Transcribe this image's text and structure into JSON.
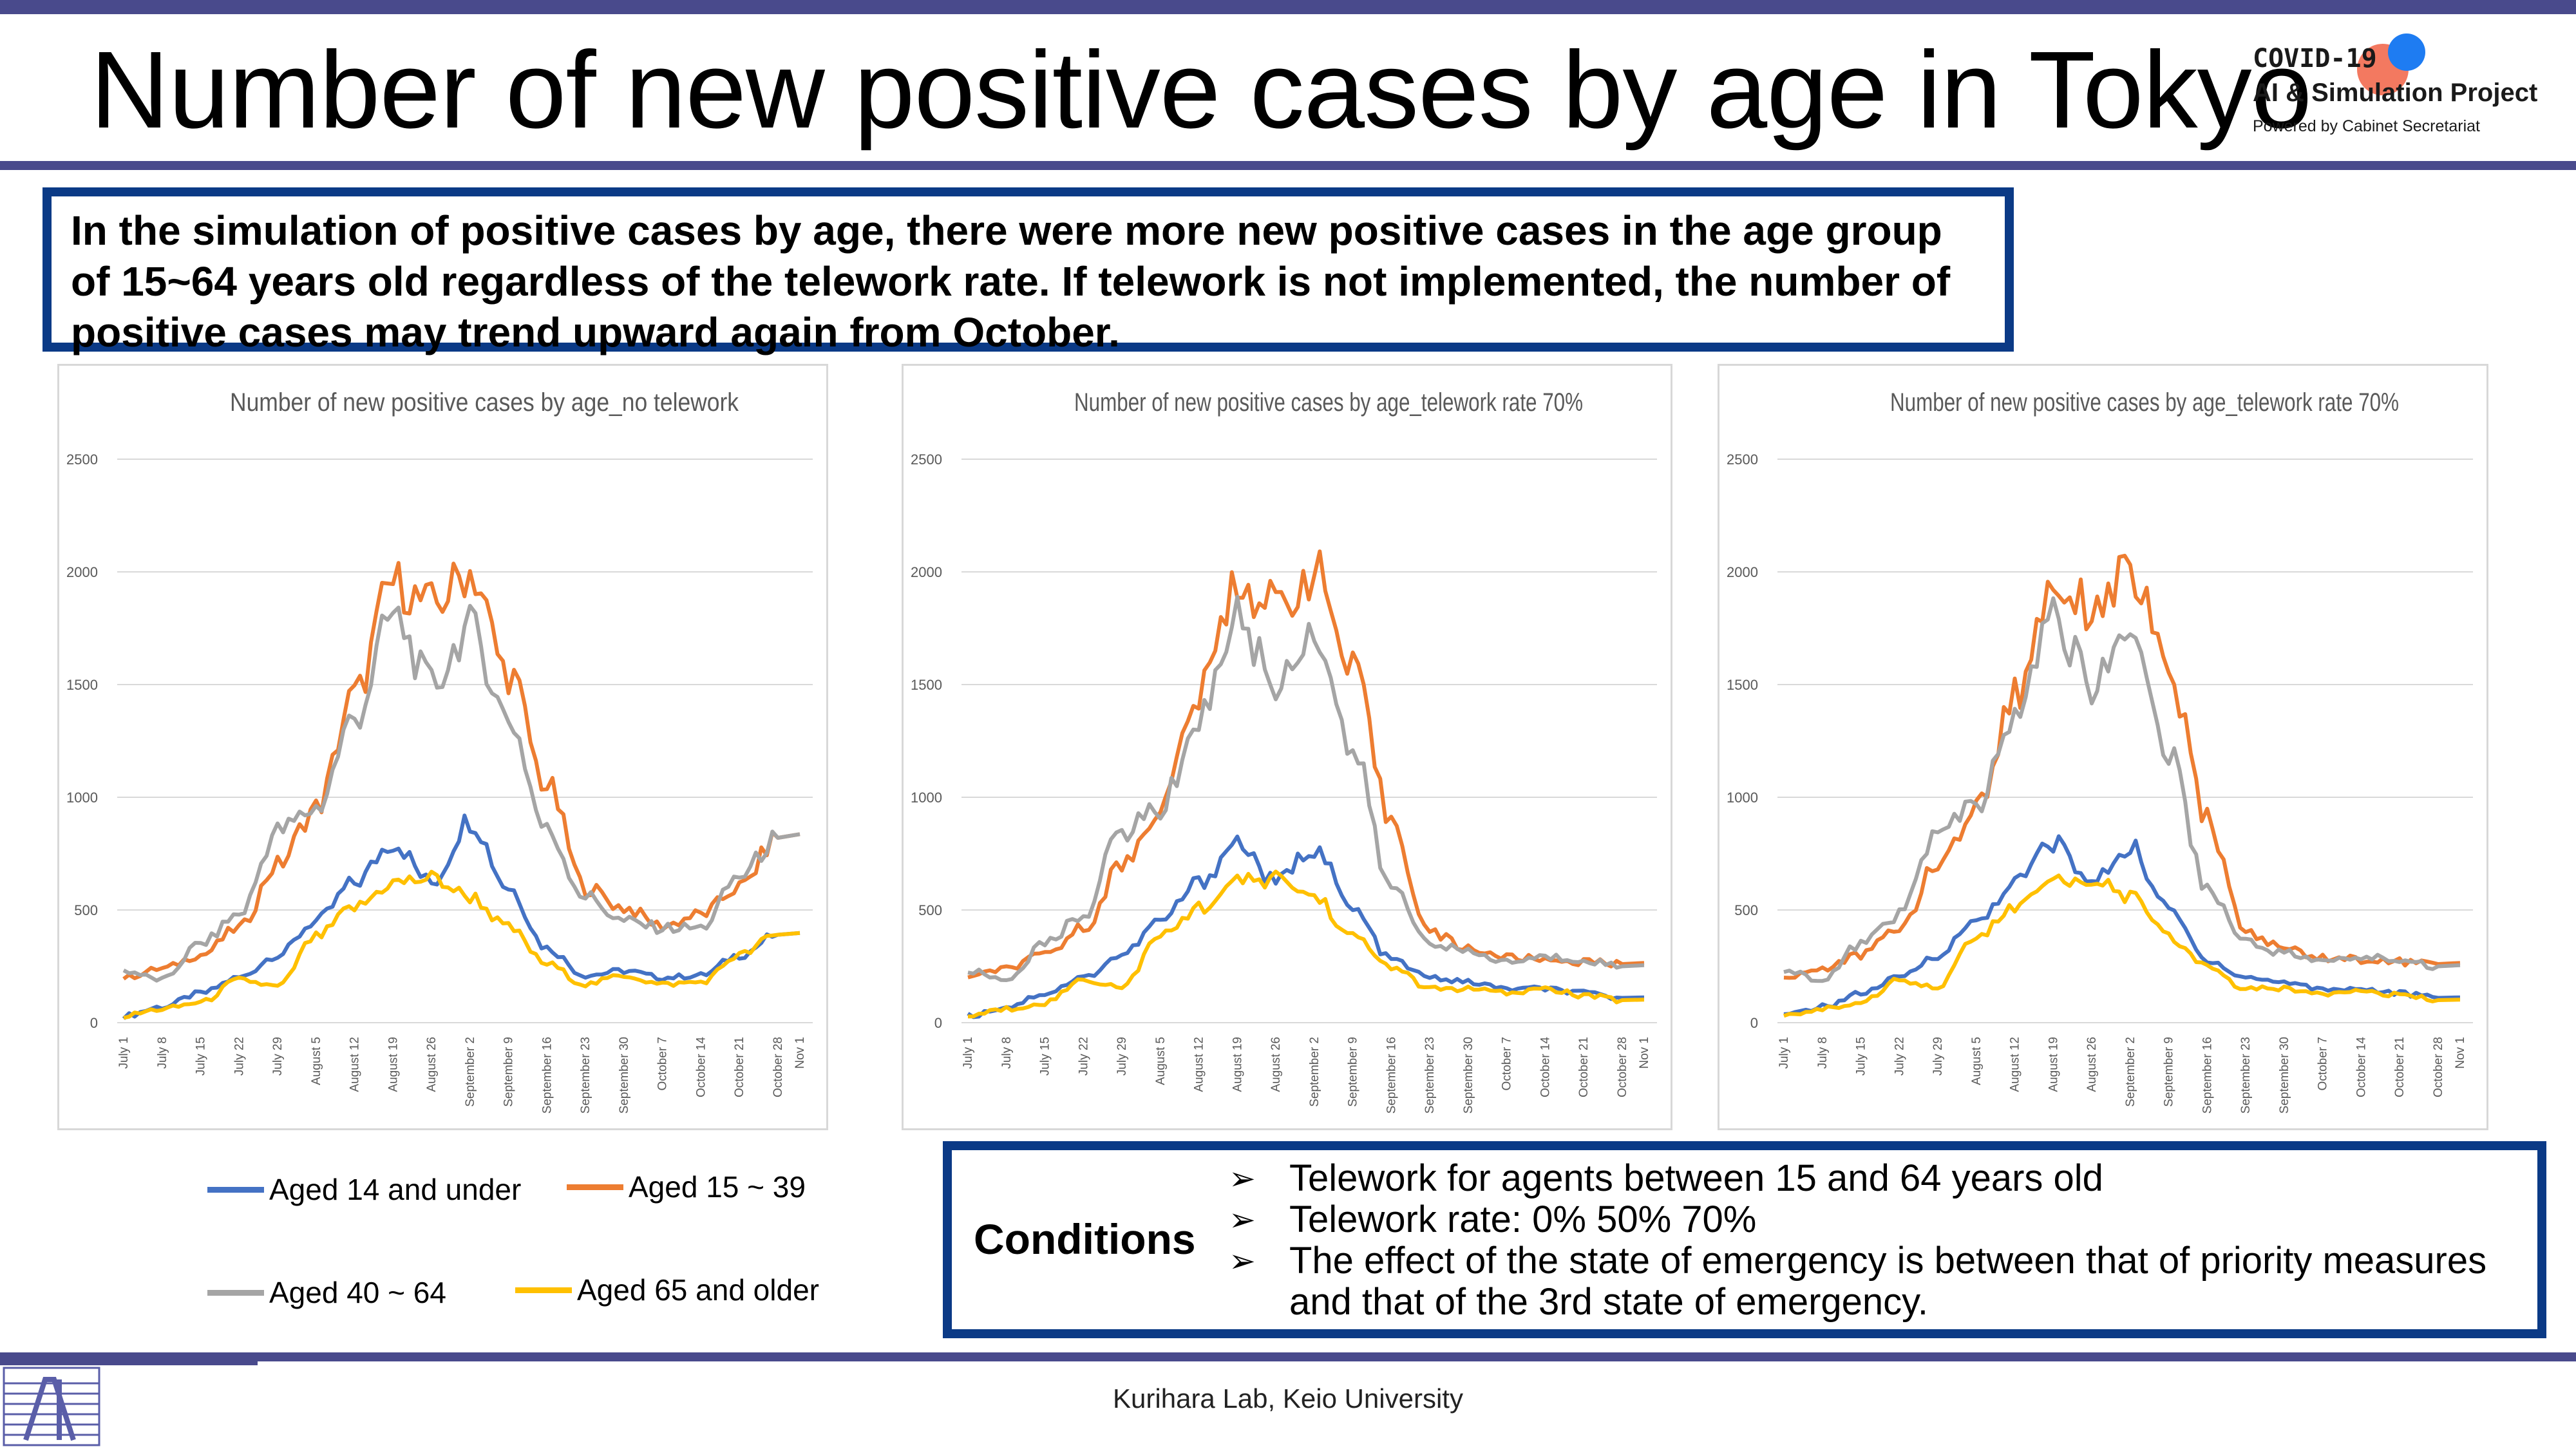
{
  "title": "Number of new positive cases by age in Tokyo",
  "logo": {
    "line1": "COVID-19",
    "line2": "AI & Simulation Project",
    "line3": "Powered by Cabinet Secretariat"
  },
  "summary": "In the simulation of positive cases by age, there were more new positive cases in the age group of 15~64 years old regardless of the telework rate. If telework is not implemented, the number of positive cases may trend upward again from October.",
  "legend": [
    {
      "label": "Aged 14 and under",
      "color": "#4472c4"
    },
    {
      "label": "Aged 15 ~ 39",
      "color": "#ed7d31"
    },
    {
      "label": "Aged 40 ~ 64",
      "color": "#a5a5a5"
    },
    {
      "label": "Aged 65 and older",
      "color": "#ffc000"
    }
  ],
  "conditions": {
    "label": "Conditions",
    "items": [
      "Telework for agents between 15 and 64 years old",
      "Telework rate: 0%  50%  70%",
      "The effect of the state of emergency is between that of priority measures and that of the 3rd state of emergency."
    ]
  },
  "footer": "Kurihara Lab, Keio University",
  "chart_data": [
    {
      "type": "line",
      "title": "Number of new positive cases by age_no telework",
      "ylim": [
        0,
        2500
      ],
      "yticks": [
        0,
        500,
        1000,
        1500,
        2000,
        2500
      ],
      "x": [
        "July 1",
        "July 8",
        "July 15",
        "July 22",
        "July 29",
        "August 5",
        "August 12",
        "August 19",
        "August 26",
        "September 2",
        "September 9",
        "September 16",
        "September 23",
        "September 30",
        "October 7",
        "October 14",
        "October 21",
        "October 28"
      ],
      "x_end_label": "Nov 1",
      "grid": true,
      "series": [
        {
          "name": "Aged 14 and under",
          "color": "#4472c4",
          "values": [
            30,
            70,
            130,
            200,
            300,
            450,
            620,
            800,
            620,
            900,
            600,
            330,
            210,
            230,
            200,
            210,
            300,
            390
          ]
        },
        {
          "name": "Aged 15 ~ 39",
          "color": "#ed7d31",
          "values": [
            200,
            240,
            300,
            420,
            700,
            950,
            1450,
            1950,
            1850,
            2000,
            1550,
            1050,
            600,
            510,
            430,
            480,
            600,
            820
          ]
        },
        {
          "name": "Aged 40 ~ 64",
          "color": "#a5a5a5",
          "values": [
            230,
            190,
            350,
            480,
            850,
            950,
            1350,
            1800,
            1500,
            1750,
            1350,
            850,
            560,
            450,
            420,
            420,
            650,
            820
          ]
        },
        {
          "name": "Aged 65 and older",
          "color": "#ffc000",
          "values": [
            30,
            60,
            90,
            190,
            160,
            380,
            510,
            620,
            640,
            560,
            420,
            260,
            170,
            210,
            170,
            180,
            300,
            390
          ]
        }
      ]
    },
    {
      "type": "line",
      "title": "Number of new positive cases by age_telework rate 70%",
      "ylim": [
        0,
        2500
      ],
      "yticks": [
        0,
        500,
        1000,
        1500,
        2000,
        2500
      ],
      "x": [
        "July 1",
        "July 8",
        "July 15",
        "July 22",
        "July 29",
        "August 5",
        "August 12",
        "August 19",
        "August 26",
        "September 2",
        "September 9",
        "September 16",
        "September 23",
        "September 30",
        "October 7",
        "October 14",
        "October 21",
        "October 28"
      ],
      "x_end_label": "Nov 1",
      "grid": true,
      "series": [
        {
          "name": "Aged 14 and under",
          "color": "#4472c4",
          "values": [
            30,
            70,
            130,
            200,
            300,
            450,
            620,
            800,
            620,
            780,
            500,
            280,
            200,
            180,
            150,
            150,
            130,
            110
          ]
        },
        {
          "name": "Aged 15 ~ 39",
          "color": "#ed7d31",
          "values": [
            200,
            240,
            300,
            420,
            700,
            950,
            1450,
            1950,
            1850,
            2000,
            1550,
            900,
            400,
            330,
            290,
            280,
            270,
            260
          ]
        },
        {
          "name": "Aged 40 ~ 64",
          "color": "#a5a5a5",
          "values": [
            230,
            190,
            350,
            480,
            850,
            950,
            1350,
            1800,
            1500,
            1750,
            1200,
            600,
            360,
            310,
            270,
            290,
            280,
            250
          ]
        },
        {
          "name": "Aged 65 and older",
          "color": "#ffc000",
          "values": [
            30,
            60,
            90,
            190,
            160,
            380,
            510,
            620,
            640,
            560,
            380,
            250,
            150,
            150,
            130,
            150,
            120,
            100
          ]
        }
      ]
    },
    {
      "type": "line",
      "title": "Number of new positive cases by age_telework rate 70%",
      "ylim": [
        0,
        2500
      ],
      "yticks": [
        0,
        500,
        1000,
        1500,
        2000,
        2500
      ],
      "x": [
        "July 1",
        "July 8",
        "July 15",
        "July 22",
        "July 29",
        "August 5",
        "August 12",
        "August 19",
        "August 26",
        "September 2",
        "September 9",
        "September 16",
        "September 23",
        "September 30",
        "October 7",
        "October 14",
        "October 21",
        "October 28"
      ],
      "x_end_label": "Nov 1",
      "grid": true,
      "series": [
        {
          "name": "Aged 14 and under",
          "color": "#4472c4",
          "values": [
            30,
            70,
            130,
            200,
            300,
            450,
            620,
            800,
            620,
            780,
            500,
            280,
            200,
            180,
            150,
            150,
            130,
            110
          ]
        },
        {
          "name": "Aged 15 ~ 39",
          "color": "#ed7d31",
          "values": [
            200,
            240,
            300,
            420,
            700,
            950,
            1450,
            1950,
            1850,
            2000,
            1550,
            900,
            400,
            330,
            290,
            280,
            270,
            260
          ]
        },
        {
          "name": "Aged 40 ~ 64",
          "color": "#a5a5a5",
          "values": [
            230,
            190,
            350,
            480,
            850,
            950,
            1350,
            1800,
            1500,
            1750,
            1200,
            600,
            360,
            310,
            270,
            290,
            280,
            250
          ]
        },
        {
          "name": "Aged 65 and older",
          "color": "#ffc000",
          "values": [
            30,
            60,
            90,
            190,
            160,
            380,
            510,
            620,
            640,
            560,
            380,
            250,
            150,
            150,
            130,
            150,
            120,
            100
          ]
        }
      ]
    }
  ]
}
